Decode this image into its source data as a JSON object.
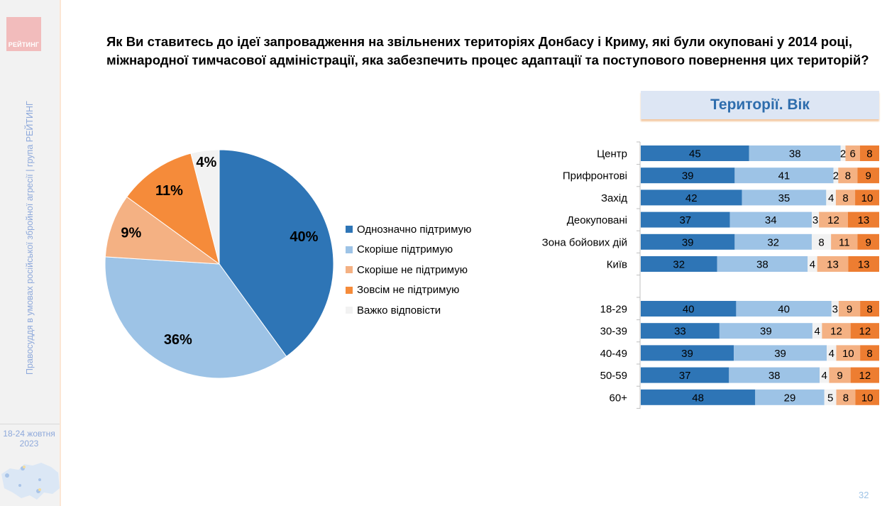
{
  "sidebar": {
    "logo_text": "РЕЙТИНГ",
    "vertical_text": "Правосуддя в умовах російської збройної агресії | група РЕЙТИНГ",
    "date_line1": "18-24 жовтня",
    "date_line2": "2023"
  },
  "title": "Як Ви ставитесь до ідеї запровадження на звільнених територіях Донбасу і Криму, які були окуповані у 2014 році, міжнародної тимчасової адміністрації, яка забезпечить процес адаптації та поступового повернення цих територій?",
  "category_header": "Території. Вік",
  "page_number": "32",
  "colors": {
    "strong_support": "#2e75b6",
    "rather_support": "#9dc3e6",
    "hard_to_say": "#f2f2f2",
    "rather_not": "#f4b183",
    "not_at_all": "#f58b3a",
    "not_at_all_bars": "#ed7d31"
  },
  "chart_data": [
    {
      "type": "pie",
      "title": "",
      "legend_position": "right",
      "categories": [
        "Однозначно підтримую",
        "Скоріше підтримую",
        "Скоріше не підтримую",
        "Зовсім не підтримую",
        "Важко відповісти"
      ],
      "values": [
        40,
        36,
        9,
        11,
        4
      ],
      "slice_order_clockwise_from_top": [
        "Однозначно підтримую",
        "Скоріше підтримую",
        "Скоріше не підтримую",
        "Зовсім не підтримую",
        "Важко відповісти"
      ],
      "labels": [
        "40%",
        "36%",
        "9%",
        "11%",
        "4%"
      ]
    },
    {
      "type": "bar",
      "orientation": "horizontal",
      "stacked": true,
      "xlim": [
        0,
        100
      ],
      "categories": [
        "Центр",
        "Прифронтові",
        "Захід",
        "Деокуповані",
        "Зона бойових дій",
        "Київ",
        "18-29",
        "30-39",
        "40-49",
        "50-59",
        "60+"
      ],
      "groups": [
        {
          "name": "Території",
          "categories": [
            "Центр",
            "Прифронтові",
            "Захід",
            "Деокуповані",
            "Зона бойових дій",
            "Київ"
          ]
        },
        {
          "name": "Вік",
          "categories": [
            "18-29",
            "30-39",
            "40-49",
            "50-59",
            "60+"
          ]
        }
      ],
      "series": [
        {
          "name": "Однозначно підтримую",
          "values": [
            45,
            39,
            42,
            37,
            39,
            32,
            40,
            33,
            39,
            37,
            48
          ]
        },
        {
          "name": "Скоріше підтримую",
          "values": [
            38,
            41,
            35,
            34,
            32,
            38,
            40,
            39,
            39,
            38,
            29
          ]
        },
        {
          "name": "Важко відповісти",
          "values": [
            2,
            2,
            4,
            3,
            8,
            4,
            3,
            4,
            4,
            4,
            5
          ]
        },
        {
          "name": "Скоріше не підтримую",
          "values": [
            6,
            8,
            8,
            12,
            11,
            13,
            9,
            12,
            10,
            9,
            8
          ]
        },
        {
          "name": "Зовсім не підтримую",
          "values": [
            8,
            9,
            10,
            13,
            9,
            13,
            8,
            12,
            8,
            12,
            10
          ]
        }
      ]
    }
  ]
}
